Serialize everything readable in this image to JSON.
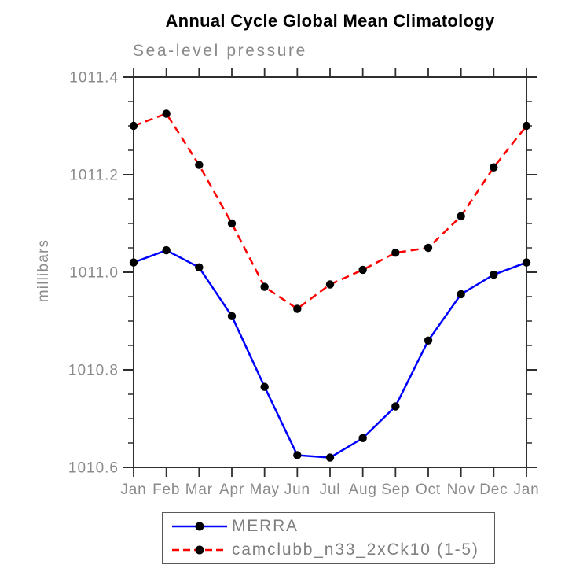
{
  "chart_data": {
    "type": "line",
    "title": "Annual Cycle Global Mean Climatology",
    "subtitle": "Sea-level pressure",
    "ylabel": "millibars",
    "xlabel": "",
    "categories": [
      "Jan",
      "Feb",
      "Mar",
      "Apr",
      "May",
      "Jun",
      "Jul",
      "Aug",
      "Sep",
      "Oct",
      "Nov",
      "Dec",
      "Jan"
    ],
    "ylim": [
      1010.6,
      1011.4
    ],
    "ytick_labels": [
      "1010.6",
      "1010.8",
      "1011.0",
      "1011.2",
      "1011.4"
    ],
    "minor_tick_step": 0.05,
    "grid": false,
    "legend_position": "bottom",
    "axis_color": "#2e2e2e",
    "tick_label_color": "#8a8a8a",
    "series": [
      {
        "name": "MERRA",
        "color": "#0000ff",
        "style": "solid",
        "marker": "circle",
        "marker_color": "#000000",
        "values": [
          1011.02,
          1011.045,
          1011.01,
          1010.91,
          1010.765,
          1010.625,
          1010.62,
          1010.66,
          1010.725,
          1010.86,
          1010.955,
          1010.995,
          1011.02
        ]
      },
      {
        "name": "camclubb_n33_2xCk10 (1-5)",
        "color": "#ff0000",
        "style": "dashed",
        "marker": "circle",
        "marker_color": "#000000",
        "values": [
          1011.3,
          1011.325,
          1011.22,
          1011.1,
          1010.97,
          1010.925,
          1010.975,
          1011.005,
          1011.04,
          1011.05,
          1011.115,
          1011.215,
          1011.3
        ]
      }
    ]
  }
}
